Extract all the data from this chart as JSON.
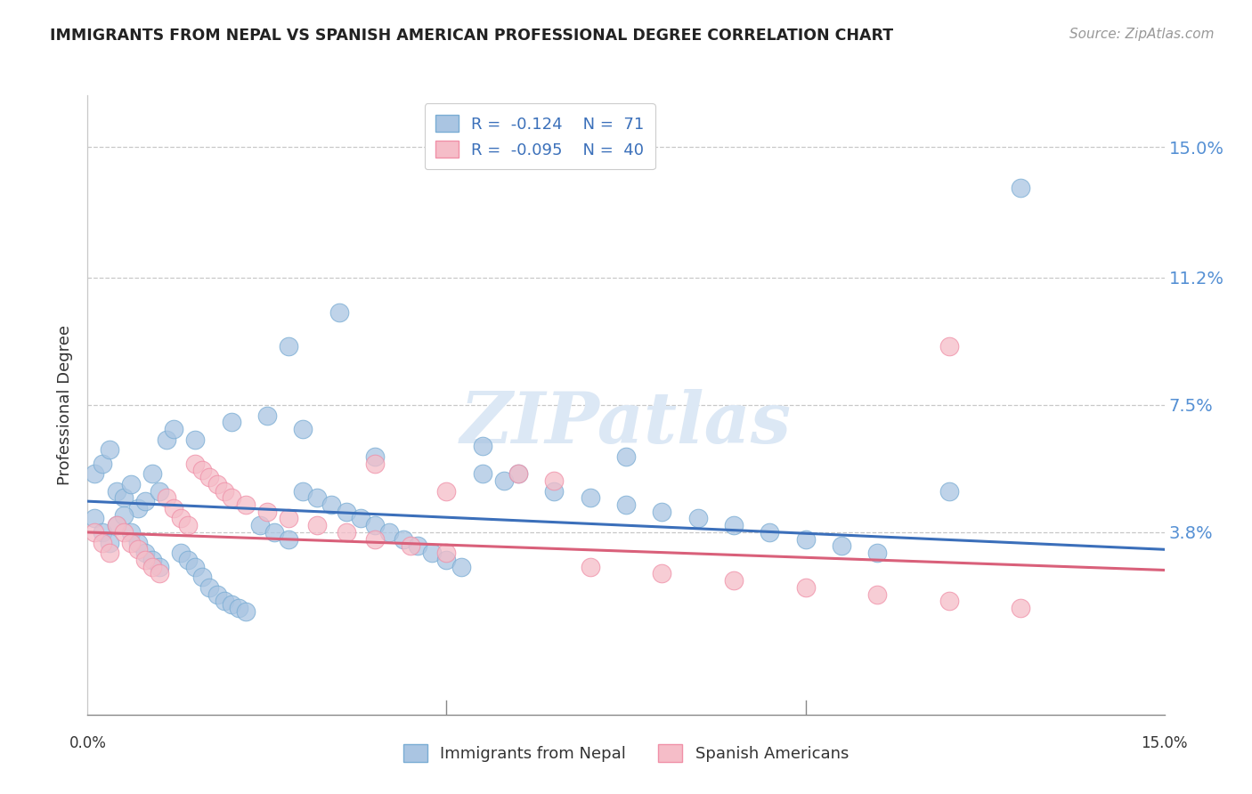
{
  "title": "IMMIGRANTS FROM NEPAL VS SPANISH AMERICAN PROFESSIONAL DEGREE CORRELATION CHART",
  "source": "Source: ZipAtlas.com",
  "ylabel": "Professional Degree",
  "ytick_labels": [
    "15.0%",
    "11.2%",
    "7.5%",
    "3.8%"
  ],
  "ytick_values": [
    0.15,
    0.112,
    0.075,
    0.038
  ],
  "xmin": 0.0,
  "xmax": 0.15,
  "ymin": -0.015,
  "ymax": 0.165,
  "series1_color": "#aac5e2",
  "series1_edge": "#7aadd4",
  "series2_color": "#f5bdc8",
  "series2_edge": "#f090a8",
  "trend1_color": "#3b6fba",
  "trend2_color": "#d9607a",
  "watermark_text": "ZIPatlas",
  "watermark_color": "#dce8f5",
  "nepal_x": [
    0.001,
    0.002,
    0.003,
    0.004,
    0.005,
    0.006,
    0.007,
    0.008,
    0.009,
    0.01,
    0.001,
    0.002,
    0.003,
    0.004,
    0.005,
    0.006,
    0.007,
    0.008,
    0.009,
    0.01,
    0.011,
    0.012,
    0.013,
    0.014,
    0.015,
    0.016,
    0.017,
    0.018,
    0.019,
    0.02,
    0.021,
    0.022,
    0.024,
    0.026,
    0.028,
    0.03,
    0.032,
    0.034,
    0.036,
    0.038,
    0.04,
    0.042,
    0.044,
    0.046,
    0.048,
    0.05,
    0.052,
    0.055,
    0.058,
    0.06,
    0.065,
    0.07,
    0.075,
    0.08,
    0.085,
    0.09,
    0.095,
    0.1,
    0.105,
    0.11,
    0.035,
    0.028,
    0.015,
    0.02,
    0.025,
    0.03,
    0.04,
    0.055,
    0.13,
    0.075,
    0.12
  ],
  "nepal_y": [
    0.055,
    0.058,
    0.062,
    0.05,
    0.048,
    0.052,
    0.045,
    0.047,
    0.055,
    0.05,
    0.042,
    0.038,
    0.035,
    0.04,
    0.043,
    0.038,
    0.035,
    0.032,
    0.03,
    0.028,
    0.065,
    0.068,
    0.032,
    0.03,
    0.028,
    0.025,
    0.022,
    0.02,
    0.018,
    0.017,
    0.016,
    0.015,
    0.04,
    0.038,
    0.036,
    0.05,
    0.048,
    0.046,
    0.044,
    0.042,
    0.04,
    0.038,
    0.036,
    0.034,
    0.032,
    0.03,
    0.028,
    0.055,
    0.053,
    0.055,
    0.05,
    0.048,
    0.046,
    0.044,
    0.042,
    0.04,
    0.038,
    0.036,
    0.034,
    0.032,
    0.102,
    0.092,
    0.065,
    0.07,
    0.072,
    0.068,
    0.06,
    0.063,
    0.138,
    0.06,
    0.05
  ],
  "spanish_x": [
    0.001,
    0.002,
    0.003,
    0.004,
    0.005,
    0.006,
    0.007,
    0.008,
    0.009,
    0.01,
    0.011,
    0.012,
    0.013,
    0.014,
    0.015,
    0.016,
    0.017,
    0.018,
    0.019,
    0.02,
    0.022,
    0.025,
    0.028,
    0.032,
    0.036,
    0.04,
    0.045,
    0.05,
    0.06,
    0.065,
    0.07,
    0.08,
    0.09,
    0.1,
    0.11,
    0.12,
    0.13,
    0.04,
    0.05,
    0.12
  ],
  "spanish_y": [
    0.038,
    0.035,
    0.032,
    0.04,
    0.038,
    0.035,
    0.033,
    0.03,
    0.028,
    0.026,
    0.048,
    0.045,
    0.042,
    0.04,
    0.058,
    0.056,
    0.054,
    0.052,
    0.05,
    0.048,
    0.046,
    0.044,
    0.042,
    0.04,
    0.038,
    0.036,
    0.034,
    0.032,
    0.055,
    0.053,
    0.028,
    0.026,
    0.024,
    0.022,
    0.02,
    0.018,
    0.016,
    0.058,
    0.05,
    0.092
  ],
  "trend1_x0": 0.0,
  "trend1_y0": 0.047,
  "trend1_x1": 0.15,
  "trend1_y1": 0.033,
  "trend2_x0": 0.0,
  "trend2_y0": 0.038,
  "trend2_x1": 0.15,
  "trend2_y1": 0.027
}
